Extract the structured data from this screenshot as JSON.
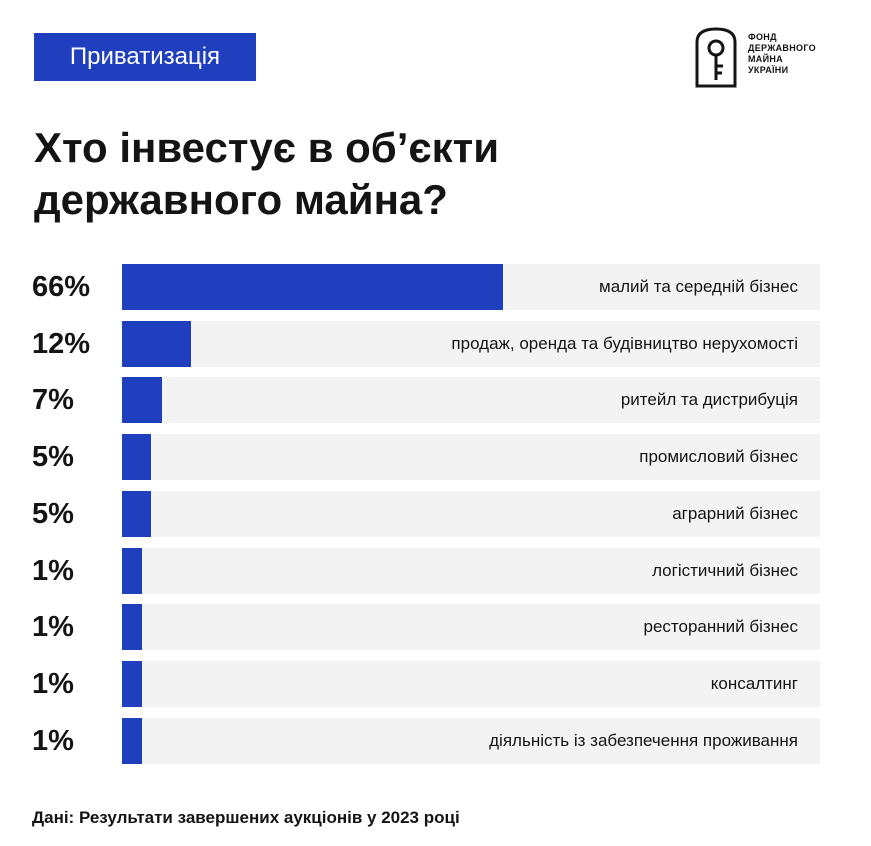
{
  "header": {
    "tag": "Приватизація",
    "logo_lines": [
      "ФОНД",
      "ДЕРЖАВНОГО",
      "МАЙНА",
      "УКРАЇНИ"
    ]
  },
  "title_lines": [
    "Хто інвестує в об’єкти",
    "державного майна?"
  ],
  "colors": {
    "accent": "#1f3fbf",
    "track": "#f3f3f3",
    "text": "#141414"
  },
  "chart_data": {
    "type": "bar",
    "orientation": "horizontal",
    "title": "Хто інвестує в об’єкти державного майна?",
    "xlim": [
      0,
      100
    ],
    "categories": [
      "малий та середній бізнес",
      "продаж, оренда та будівництво нерухомості",
      "ритейл та дистрибуція",
      "промисловий бізнес",
      "аграрний бізнес",
      "логістичний бізнес",
      "ресторанний бізнес",
      "консалтинг",
      "діяльність із забезпечення проживання"
    ],
    "values": [
      66,
      12,
      7,
      5,
      5,
      1,
      1,
      1,
      1
    ],
    "value_labels": [
      "66%",
      "12%",
      "7%",
      "5%",
      "5%",
      "1%",
      "1%",
      "1%",
      "1%"
    ]
  },
  "footer": {
    "source": "Дані: Результати завершених аукціонів у 2023 році"
  }
}
